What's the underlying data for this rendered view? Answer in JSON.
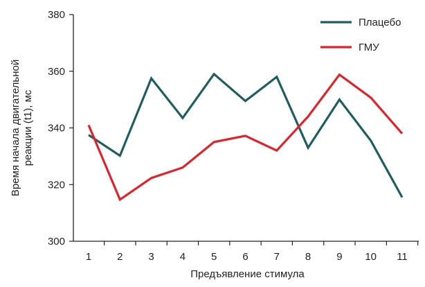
{
  "chart_data": {
    "type": "line",
    "title": "",
    "xlabel": "Предъявление стимула",
    "ylabel": "Время начала двигательной реакции (t1), мс",
    "ylabel_lines": [
      "Время начала двигательной",
      "реакции (t1), мс"
    ],
    "categories": [
      "1",
      "2",
      "3",
      "4",
      "5",
      "6",
      "7",
      "8",
      "9",
      "10",
      "11"
    ],
    "ylim": [
      300,
      380
    ],
    "yticks": [
      300,
      320,
      340,
      360,
      380
    ],
    "grid": false,
    "legend_position": "top-right",
    "series": [
      {
        "name": "Плацебо",
        "color": "#1e5e5e",
        "values": [
          337.5,
          330.2,
          357.5,
          343.5,
          359,
          349.5,
          358,
          333,
          350,
          335.5,
          315.5
        ]
      },
      {
        "name": "ГМУ",
        "color": "#e0232b",
        "values": [
          341,
          314.7,
          322.3,
          326,
          335,
          337.2,
          332,
          344,
          358.8,
          350.7,
          338
        ]
      }
    ]
  }
}
